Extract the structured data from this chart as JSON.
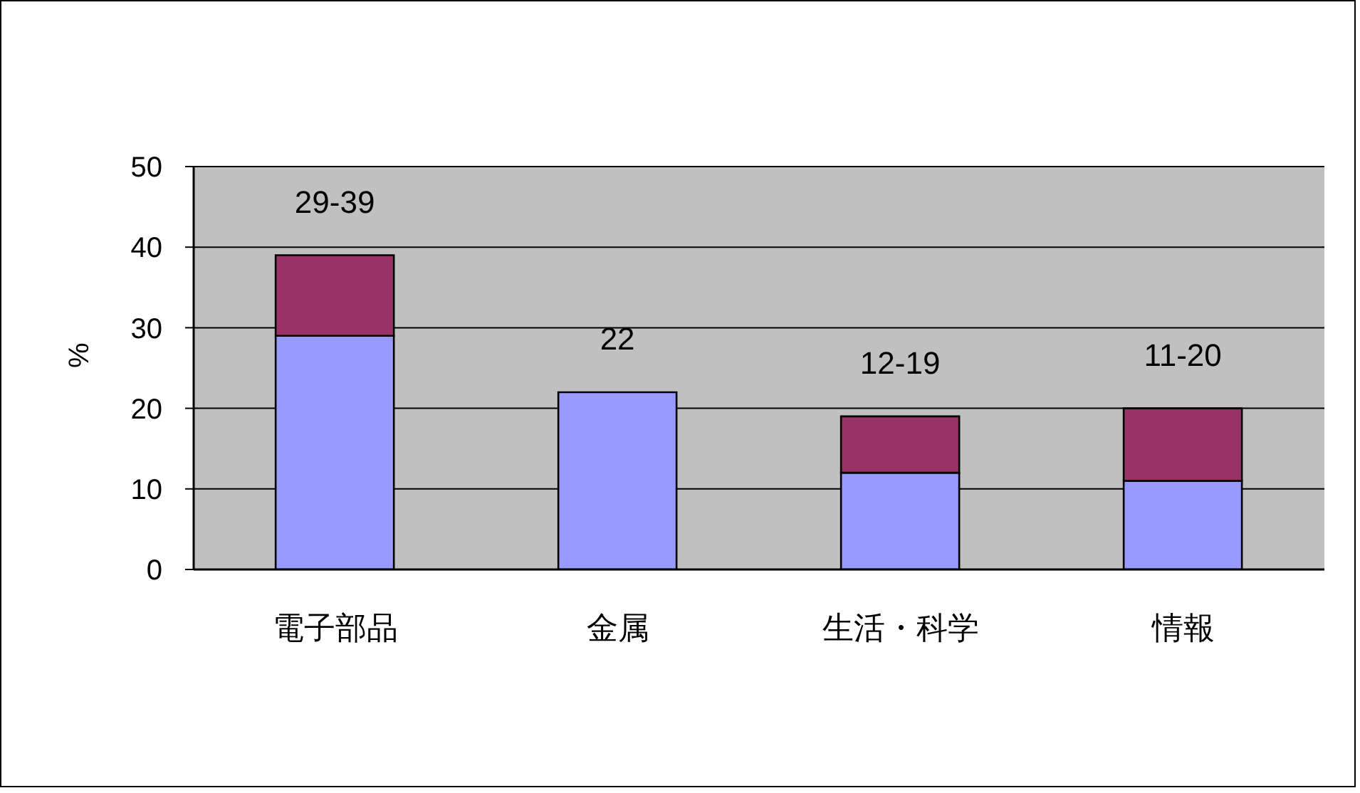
{
  "chart_data": {
    "type": "bar",
    "ylabel": "%",
    "categories": [
      "電子部品",
      "金属",
      "生活・科学",
      "情報"
    ],
    "series": [
      {
        "color": "#9999ff",
        "values": [
          29,
          22,
          12,
          11
        ],
        "value_labels": [
          null,
          "22",
          null,
          null
        ]
      },
      {
        "color": "#993366",
        "values": [
          10,
          null,
          7,
          9
        ],
        "value_labels": [
          "29-39",
          null,
          "12-19",
          "11-20"
        ]
      }
    ],
    "stacked": true,
    "ylim": [
      0,
      50
    ],
    "yticks": [
      0,
      10,
      20,
      30,
      40,
      50
    ],
    "grid": "y"
  }
}
